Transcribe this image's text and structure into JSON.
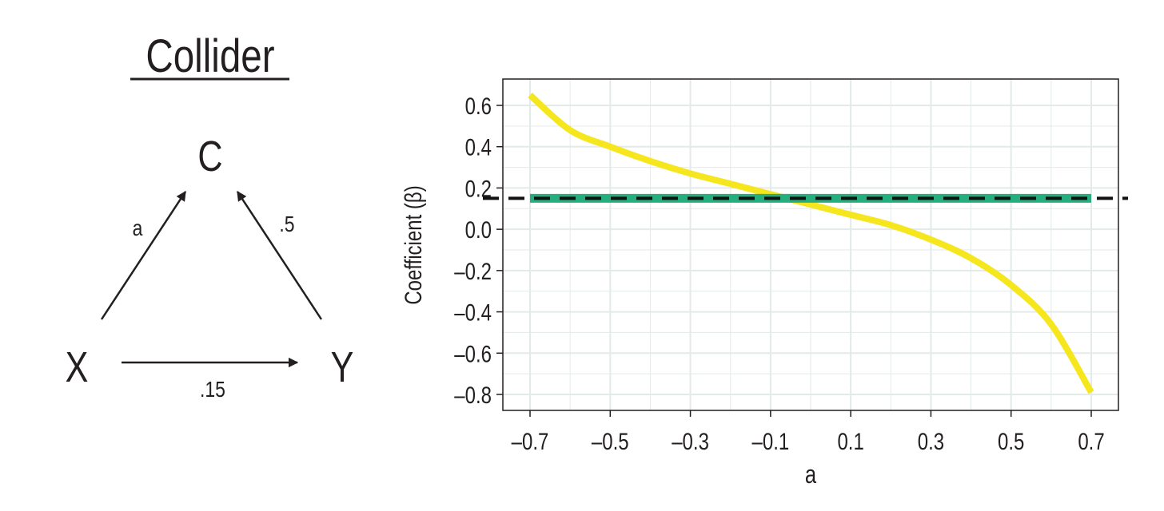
{
  "diagram": {
    "title": "Collider",
    "nodes": {
      "c": "C",
      "x": "X",
      "y": "Y"
    },
    "edge_labels": {
      "x_to_c": "a",
      "y_to_c": ".5",
      "x_to_y": ".15"
    }
  },
  "colors": {
    "curve": "#f5e61e",
    "reference": "#27ae7e",
    "dashed": "#111111",
    "grid": "#e3eaea",
    "text": "#231f20"
  },
  "chart_data": {
    "type": "line",
    "xlabel": "a",
    "ylabel": "Coefficient (β)",
    "xlim": [
      -0.7,
      0.7
    ],
    "ylim": [
      -0.8,
      0.6
    ],
    "xticks": [
      -0.7,
      -0.5,
      -0.3,
      -0.1,
      0.1,
      0.3,
      0.5,
      0.7
    ],
    "yticks": [
      0.6,
      0.4,
      0.2,
      0.0,
      -0.2,
      -0.4,
      -0.6,
      -0.8
    ],
    "xtick_labels": [
      "–0.7",
      "–0.5",
      "–0.3",
      "–0.1",
      "0.1",
      "0.3",
      "0.5",
      "0.7"
    ],
    "ytick_labels": [
      "0.6",
      "0.4",
      "0.2",
      "0.0",
      "–0.2",
      "–0.4",
      "–0.6",
      "–0.8"
    ],
    "grid": true,
    "series": [
      {
        "style": "solid",
        "color": "#f5e61e",
        "x": [
          -0.7,
          -0.6,
          -0.5,
          -0.4,
          -0.3,
          -0.2,
          -0.1,
          0.0,
          0.1,
          0.2,
          0.3,
          0.4,
          0.5,
          0.6,
          0.7
        ],
        "y": [
          0.65,
          0.48,
          0.4,
          0.33,
          0.27,
          0.22,
          0.17,
          0.12,
          0.07,
          0.02,
          -0.05,
          -0.14,
          -0.27,
          -0.46,
          -0.79
        ]
      },
      {
        "style": "solid-thick",
        "color": "#27ae7e",
        "x": [
          -0.7,
          0.7
        ],
        "y": [
          0.15,
          0.15
        ]
      },
      {
        "style": "dashed",
        "color": "#111111",
        "x": [
          -0.7,
          0.7
        ],
        "y": [
          0.15,
          0.15
        ],
        "extends_full_width": true
      }
    ]
  }
}
